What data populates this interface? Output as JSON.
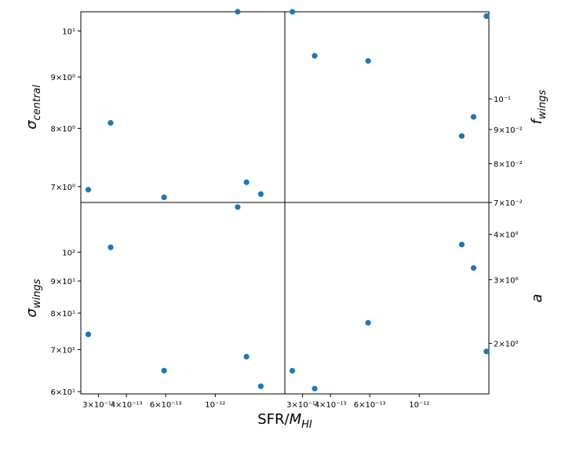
{
  "figure": {
    "xlabel": "SFR/M_HI",
    "xlabel_main": "SFR/",
    "xlabel_var": "M",
    "xlabel_sub": "HI",
    "point_color": "#1f77b4"
  },
  "chart_data": [
    {
      "type": "scatter",
      "id": "sigma_central",
      "panel": "top-left",
      "ylabel_main": "σ",
      "ylabel_sub": "central",
      "x_scale": "log",
      "y_scale": "log",
      "xlim": [
        2.5e-13,
        2.05e-12
      ],
      "ylim": [
        6.75,
        10.45
      ],
      "xticks": [
        {
          "value": 3e-13,
          "label": "3×10⁻¹³"
        },
        {
          "value": 4e-13,
          "label": "4×10⁻¹³"
        },
        {
          "value": 6e-13,
          "label": "6×10⁻¹³"
        },
        {
          "value": 1e-12,
          "label": "10⁻¹²"
        }
      ],
      "yticks": [
        {
          "value": 7,
          "label": "7×10⁰"
        },
        {
          "value": 8,
          "label": "8×10⁰"
        },
        {
          "value": 9,
          "label": "9×10⁰"
        },
        {
          "value": 10,
          "label": "10¹"
        }
      ],
      "x": [
        2.7e-13,
        3.4e-13,
        5.9e-13,
        1.26e-12,
        1.38e-12,
        1.6e-12
      ],
      "y": [
        6.95,
        8.1,
        6.83,
        10.45,
        7.07,
        6.88
      ]
    },
    {
      "type": "scatter",
      "id": "f_wings",
      "panel": "top-right",
      "ylabel_main": "f",
      "ylabel_sub": "wings",
      "x_scale": "log",
      "y_scale": "log",
      "xlim": [
        2.5e-13,
        2.05e-12
      ],
      "ylim": [
        0.07,
        0.135
      ],
      "xticks": [
        {
          "value": 3e-13,
          "label": "3×10⁻¹³"
        },
        {
          "value": 4e-13,
          "label": "4×10⁻¹³"
        },
        {
          "value": 6e-13,
          "label": "6×10⁻¹³"
        },
        {
          "value": 1e-12,
          "label": "10⁻¹²"
        }
      ],
      "yticks": [
        {
          "value": 0.07,
          "label": "7×10⁻²"
        },
        {
          "value": 0.08,
          "label": "8×10⁻²"
        },
        {
          "value": 0.09,
          "label": "9×10⁻²"
        },
        {
          "value": 0.1,
          "label": "10⁻¹"
        }
      ],
      "x": [
        2.7e-13,
        3.4e-13,
        5.9e-13,
        1.55e-12,
        1.75e-12,
        2e-12
      ],
      "y": [
        0.135,
        0.116,
        0.114,
        0.088,
        0.094,
        0.133
      ]
    },
    {
      "type": "scatter",
      "id": "sigma_wings",
      "panel": "bottom-left",
      "ylabel_main": "σ",
      "ylabel_sub": "wings",
      "x_scale": "log",
      "y_scale": "log",
      "xlim": [
        2.5e-13,
        2.05e-12
      ],
      "ylim": [
        59.5,
        120
      ],
      "xticks": [
        {
          "value": 3e-13,
          "label": "3×10⁻¹³"
        },
        {
          "value": 4e-13,
          "label": "4×10⁻¹³"
        },
        {
          "value": 6e-13,
          "label": "6×10⁻¹³"
        },
        {
          "value": 1e-12,
          "label": "10⁻¹²"
        }
      ],
      "yticks": [
        {
          "value": 60,
          "label": "6×10¹"
        },
        {
          "value": 70,
          "label": "7×10¹"
        },
        {
          "value": 80,
          "label": "8×10¹"
        },
        {
          "value": 90,
          "label": "9×10¹"
        },
        {
          "value": 100,
          "label": "10²"
        }
      ],
      "x": [
        2.7e-13,
        3.4e-13,
        5.9e-13,
        1.26e-12,
        1.38e-12,
        1.6e-12
      ],
      "y": [
        74,
        101.8,
        64.8,
        118,
        68.2,
        61.2
      ]
    },
    {
      "type": "scatter",
      "id": "a",
      "panel": "bottom-right",
      "ylabel_main": "a",
      "ylabel_sub": "",
      "x_scale": "log",
      "y_scale": "log",
      "xlim": [
        2.5e-13,
        2.05e-12
      ],
      "ylim": [
        1.45,
        4.9
      ],
      "xticks": [
        {
          "value": 3e-13,
          "label": "3×10⁻¹³"
        },
        {
          "value": 4e-13,
          "label": "4×10⁻¹³"
        },
        {
          "value": 6e-13,
          "label": "6×10⁻¹³"
        },
        {
          "value": 1e-12,
          "label": "10⁻¹²"
        }
      ],
      "yticks": [
        {
          "value": 2,
          "label": "2×10⁰"
        },
        {
          "value": 3,
          "label": "3×10⁰"
        },
        {
          "value": 4,
          "label": "4×10⁰"
        }
      ],
      "x": [
        2.7e-13,
        3.4e-13,
        5.9e-13,
        1.55e-12,
        1.75e-12,
        2e-12
      ],
      "y": [
        1.68,
        1.5,
        2.28,
        3.75,
        3.23,
        1.9
      ]
    }
  ]
}
